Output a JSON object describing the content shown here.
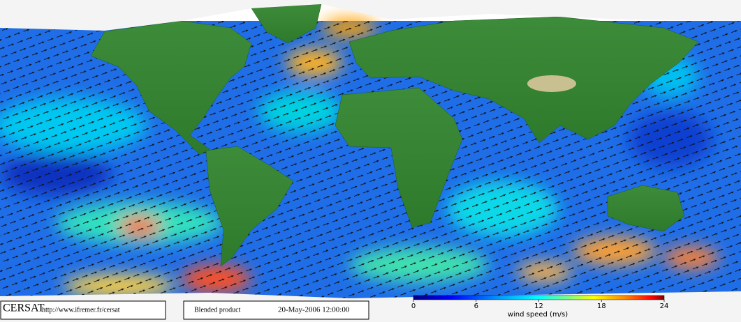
{
  "footer": {
    "logo": "CERSAT",
    "url": "http://www.ifremer.fr/cersat",
    "product": "Blended product",
    "date": "20-May-2006 12:00:00"
  },
  "colorbar": {
    "label": "wind speed (m/s)",
    "lim": [
      0,
      24
    ],
    "ticks": [
      0,
      6,
      12,
      18,
      24
    ]
  }
}
